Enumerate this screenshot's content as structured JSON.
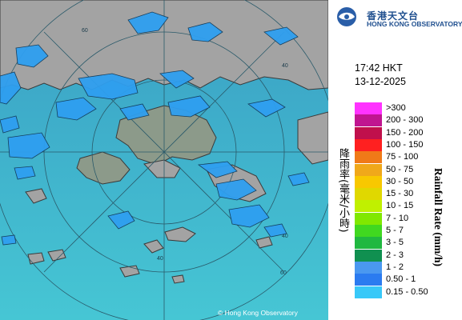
{
  "logo": {
    "name_zh": "香港天文台",
    "name_en": "HONG KONG OBSERVATORY"
  },
  "timestamp": {
    "time": "17:42 HKT",
    "date": "13-12-2025"
  },
  "legend": {
    "title_zh": "降雨率(毫米/小時)",
    "title_en": "Rainfall Rate (mm/h)",
    "items": [
      {
        "label": ">300",
        "color": "#ff33ff"
      },
      {
        "label": "200 - 300",
        "color": "#c01590"
      },
      {
        "label": "150 - 200",
        "color": "#c0104c"
      },
      {
        "label": "100 - 150",
        "color": "#ff2020"
      },
      {
        "label": "75 - 100",
        "color": "#f07a18"
      },
      {
        "label": "50 - 75",
        "color": "#f0a81a"
      },
      {
        "label": "30 - 50",
        "color": "#f8c800"
      },
      {
        "label": "15 - 30",
        "color": "#e0d800"
      },
      {
        "label": "10 - 15",
        "color": "#c0f000"
      },
      {
        "label": "7 - 10",
        "color": "#80e800"
      },
      {
        "label": "5 - 7",
        "color": "#40d820"
      },
      {
        "label": "3 - 5",
        "color": "#20b840"
      },
      {
        "label": "2 - 3",
        "color": "#109050"
      },
      {
        "label": "1 - 2",
        "color": "#4a98f0"
      },
      {
        "label": "0.50 - 1",
        "color": "#2b7bf0"
      },
      {
        "label": "0.15 - 0.50",
        "color": "#38c8f8"
      }
    ]
  },
  "map": {
    "copyright": "© Hong Kong Observatory",
    "range_ring_labels": [
      "60",
      "40",
      "40",
      "60",
      "40"
    ],
    "sea_color": "#3fb4cc",
    "land_color": "#a0a0a0",
    "rain_color": "#2f9ff0"
  }
}
